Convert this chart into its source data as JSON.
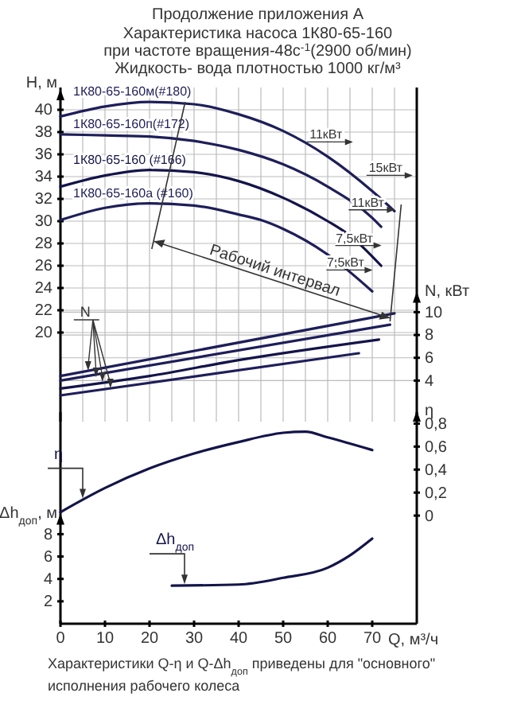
{
  "chart_data": [
    {
      "type": "line",
      "title": "Продолжение приложения А",
      "subtitle": "Характеристика насоса 1К80-65-160\nпри частоте вращения-48с$^{-1}$(2900 об/мин)\nЖидкость- вода плотностью 1000 кг/м³",
      "ylabel": "H, м",
      "y2label": "N, кВт",
      "tick_labels": "y",
      "xlim": [
        0,
        80
      ],
      "xticks": [
        0,
        {
          "value": 5,
          "label": null
        },
        10,
        {
          "value": 15,
          "label": null
        },
        20,
        {
          "value": 25,
          "label": null
        },
        30,
        {
          "value": 35,
          "label": null
        },
        40,
        {
          "value": 45,
          "label": null
        },
        50,
        {
          "value": 55,
          "label": null
        },
        60,
        {
          "value": 65,
          "label": null
        },
        70,
        {
          "value": 75,
          "label": null
        },
        {
          "value": 80,
          "label": null
        }
      ],
      "ylim": [
        12,
        42
      ],
      "yticks": [
        20,
        22,
        24,
        26,
        28,
        30,
        32,
        34,
        36,
        38,
        40
      ],
      "y2lim": [
        0.4,
        29.7
      ],
      "y2ticks": [
        4,
        6,
        8,
        10
      ],
      "grid": true,
      "series": [
        {
          "name": "1К80-65-160м(#180)",
          "color": "#1e1e5a",
          "x": [
            0,
            10,
            20,
            30,
            40,
            50,
            60,
            70,
            75
          ],
          "values": [
            39.4,
            40.3,
            40.7,
            40.5,
            39.6,
            38.1,
            35.8,
            32.7,
            30.9
          ]
        },
        {
          "name": "1К80-65-160п(#172)",
          "color": "#1e1e5a",
          "x": [
            0,
            10,
            20,
            30,
            40,
            50,
            60,
            70,
            72
          ],
          "values": [
            37.8,
            37.7,
            37.6,
            37.2,
            36.4,
            35.1,
            33.1,
            30.3,
            29.5
          ]
        },
        {
          "name": "1К80-65-160 (#166)",
          "color": "#14144a",
          "x": [
            0,
            10,
            20,
            30,
            40,
            50,
            60,
            65,
            72
          ],
          "values": [
            33.1,
            34.1,
            34.6,
            34.4,
            33.6,
            32.1,
            30.0,
            28.7,
            26.0
          ]
        },
        {
          "name": "1К80-65-160а (#160)",
          "color": "#1e1e5a",
          "x": [
            0,
            10,
            20,
            30,
            40,
            45,
            50,
            60,
            70
          ],
          "values": [
            30.1,
            31.2,
            31.6,
            31.4,
            30.6,
            30.1,
            29.3,
            27.0,
            23.7
          ]
        },
        {
          "color": "#1e1e5a",
          "axis": "y2",
          "x": [
            0,
            75
          ],
          "values": [
            4.4,
            9.9
          ]
        },
        {
          "color": "#1e1e5a",
          "axis": "y2",
          "x": [
            0,
            74
          ],
          "values": [
            4.0,
            8.9
          ]
        },
        {
          "color": "#14144a",
          "axis": "y2",
          "x": [
            0,
            20,
            40,
            71.5
          ],
          "values": [
            3.3,
            4.4,
            5.8,
            7.6
          ]
        },
        {
          "color": "#1e1e5a",
          "axis": "y2",
          "x": [
            0,
            67
          ],
          "values": [
            2.7,
            6.4
          ]
        }
      ],
      "annotations": [
        "11кВт",
        "15кВт",
        "11кВт",
        "7,5кВт",
        "7,5кВт",
        "Рабочий интервал",
        {
          "text": "N",
          "x": 8,
          "y": 16
        }
      ]
    },
    {
      "type": "line",
      "xlabel": "Q, м³/ч",
      "ylabel": "Δh$_{доп}$, м",
      "y2label": "η",
      "xlim": [
        0,
        80
      ],
      "xticks": [
        0,
        10,
        20,
        30,
        40,
        50,
        60,
        70
      ],
      "ylim": [
        0,
        18.9
      ],
      "yticks": [
        2,
        4,
        6,
        8
      ],
      "y2lim": [
        -0.94,
        0.9
      ],
      "y2ticks": [
        0,
        {
          "value": 0.2,
          "label": "0,2"
        },
        {
          "value": 0.4,
          "label": "0,4"
        },
        {
          "value": 0.6,
          "label": "0,6"
        },
        {
          "value": 0.8,
          "label": "0,8"
        }
      ],
      "series": [
        {
          "name": "η",
          "color": "#14144a",
          "axis": "y2",
          "x": [
            0,
            10,
            20,
            30,
            40,
            50,
            55,
            60,
            70
          ],
          "values": [
            0.03,
            0.24,
            0.41,
            0.54,
            0.64,
            0.72,
            0.73,
            0.68,
            0.57
          ]
        },
        {
          "name": "Δh$_{доп}$",
          "color": "#14144a",
          "x": [
            25,
            40,
            50,
            60,
            65,
            70
          ],
          "values": [
            3.4,
            3.5,
            4.1,
            5,
            6.1,
            7.6
          ]
        }
      ],
      "annotations": [
        "Характеристики Q-η и Q-Δh$_{доп}$ приведены для \"основного\" исполнения рабочего колеса"
      ]
    }
  ]
}
